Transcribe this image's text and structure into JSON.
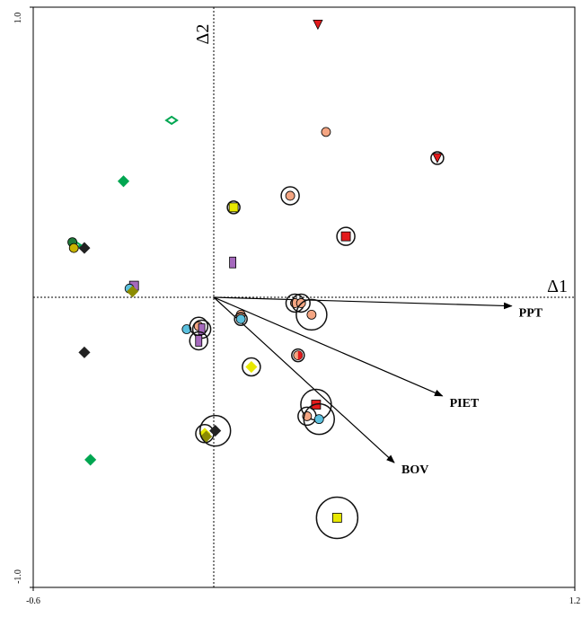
{
  "chart_data": {
    "type": "scatter",
    "x_axis_label": "Δ1",
    "y_axis_label": "Δ2",
    "xlim": [
      -0.6,
      1.2
    ],
    "ylim": [
      -1.0,
      1.0
    ],
    "xticks": [
      -0.6,
      1.2
    ],
    "yticks": [
      {
        "value": -1.0,
        "label": "-1.0"
      },
      {
        "value": 1.0,
        "label": "1.0"
      }
    ],
    "points": [
      {
        "x": 0.346,
        "y": 0.94,
        "marker": "triangle",
        "color": "#e31a1c",
        "ring": null
      },
      {
        "x": 0.373,
        "y": 0.57,
        "marker": "circle",
        "color": "#f4a582",
        "ring": null
      },
      {
        "x": 0.743,
        "y": 0.48,
        "marker": "triangle",
        "color": "#e31a1c",
        "ring": 7
      },
      {
        "x": 0.066,
        "y": 0.31,
        "marker": "square",
        "color": "#e8e800",
        "ring": 7
      },
      {
        "x": 0.254,
        "y": 0.35,
        "marker": "circle",
        "color": "#f4a582",
        "ring": 10
      },
      {
        "x": 0.439,
        "y": 0.21,
        "marker": "square",
        "color": "#e31a1c",
        "ring": 10
      },
      {
        "x": 0.063,
        "y": 0.12,
        "marker": "rect",
        "color": "#a569bd",
        "ring": null
      },
      {
        "x": -0.14,
        "y": 0.61,
        "marker": "diamond-open",
        "color": "#00a651",
        "ring": null
      },
      {
        "x": -0.3,
        "y": 0.4,
        "marker": "diamond",
        "color": "#00a651",
        "ring": null
      },
      {
        "x": -0.43,
        "y": 0.17,
        "marker": "diamond",
        "color": "#222222",
        "ring": null
      },
      {
        "x": -0.46,
        "y": 0.18,
        "marker": "diamond-open",
        "color": "#00a651",
        "ring": null
      },
      {
        "x": -0.47,
        "y": 0.19,
        "marker": "circle",
        "color": "#1f7a3a",
        "ring": null
      },
      {
        "x": -0.465,
        "y": 0.17,
        "marker": "circle",
        "color": "#c8b400",
        "ring": null
      },
      {
        "x": -0.265,
        "y": 0.04,
        "marker": "square",
        "color": "#a569bd",
        "ring": null
      },
      {
        "x": -0.28,
        "y": 0.03,
        "marker": "circle",
        "color": "#5bc0de",
        "ring": null
      },
      {
        "x": -0.27,
        "y": 0.02,
        "marker": "diamond",
        "color": "#8b8b00",
        "ring": null
      },
      {
        "x": -0.43,
        "y": -0.19,
        "marker": "diamond",
        "color": "#222222",
        "ring": null
      },
      {
        "x": -0.41,
        "y": -0.56,
        "marker": "diamond",
        "color": "#00a651",
        "ring": null
      },
      {
        "x": -0.09,
        "y": -0.11,
        "marker": "circle",
        "color": "#5bc0de",
        "ring": null
      },
      {
        "x": -0.05,
        "y": -0.1,
        "marker": "circle",
        "color": "#f4a582",
        "ring": 10
      },
      {
        "x": -0.04,
        "y": -0.11,
        "marker": "rect",
        "color": "#a569bd",
        "ring": 10
      },
      {
        "x": -0.05,
        "y": -0.15,
        "marker": "rect",
        "color": "#a569bd",
        "ring": 10
      },
      {
        "x": 0.09,
        "y": -0.06,
        "marker": "circle",
        "color": "#f4a582",
        "ring": null
      },
      {
        "x": 0.09,
        "y": -0.075,
        "marker": "circle",
        "color": "#5bc0de",
        "ring": 7
      },
      {
        "x": 0.27,
        "y": -0.02,
        "marker": "circle",
        "color": "#f4a582",
        "ring": 10
      },
      {
        "x": 0.29,
        "y": -0.02,
        "marker": "circle",
        "color": "#f4a582",
        "ring": 10
      },
      {
        "x": 0.325,
        "y": -0.06,
        "marker": "circle",
        "color": "#f4a582",
        "ring": 17
      },
      {
        "x": 0.125,
        "y": -0.24,
        "marker": "diamond",
        "color": "#e8e800",
        "ring": 10
      },
      {
        "x": 0.28,
        "y": -0.2,
        "marker": "half",
        "color": "#e31a1c",
        "ring": 7
      },
      {
        "x": 0.34,
        "y": -0.37,
        "marker": "square",
        "color": "#e31a1c",
        "ring": 17
      },
      {
        "x": 0.31,
        "y": -0.41,
        "marker": "circle",
        "color": "#f4a582",
        "ring": 10
      },
      {
        "x": 0.35,
        "y": -0.42,
        "marker": "circle",
        "color": "#5bc0de",
        "ring": 17
      },
      {
        "x": -0.03,
        "y": -0.47,
        "marker": "diamond",
        "color": "#e8e800",
        "ring": 10
      },
      {
        "x": -0.025,
        "y": -0.48,
        "marker": "diamond",
        "color": "#8b8b00",
        "ring": null
      },
      {
        "x": 0.005,
        "y": -0.46,
        "marker": "diamond",
        "color": "#222222",
        "ring": 17
      },
      {
        "x": 0.41,
        "y": -0.76,
        "marker": "square",
        "color": "#e8e800",
        "ring": 23
      }
    ],
    "arrows": [
      {
        "label": "PPT",
        "x": 0.99,
        "y": -0.03
      },
      {
        "label": "PIET",
        "x": 0.76,
        "y": -0.34
      },
      {
        "label": "BOV",
        "x": 0.6,
        "y": -0.57
      }
    ]
  }
}
